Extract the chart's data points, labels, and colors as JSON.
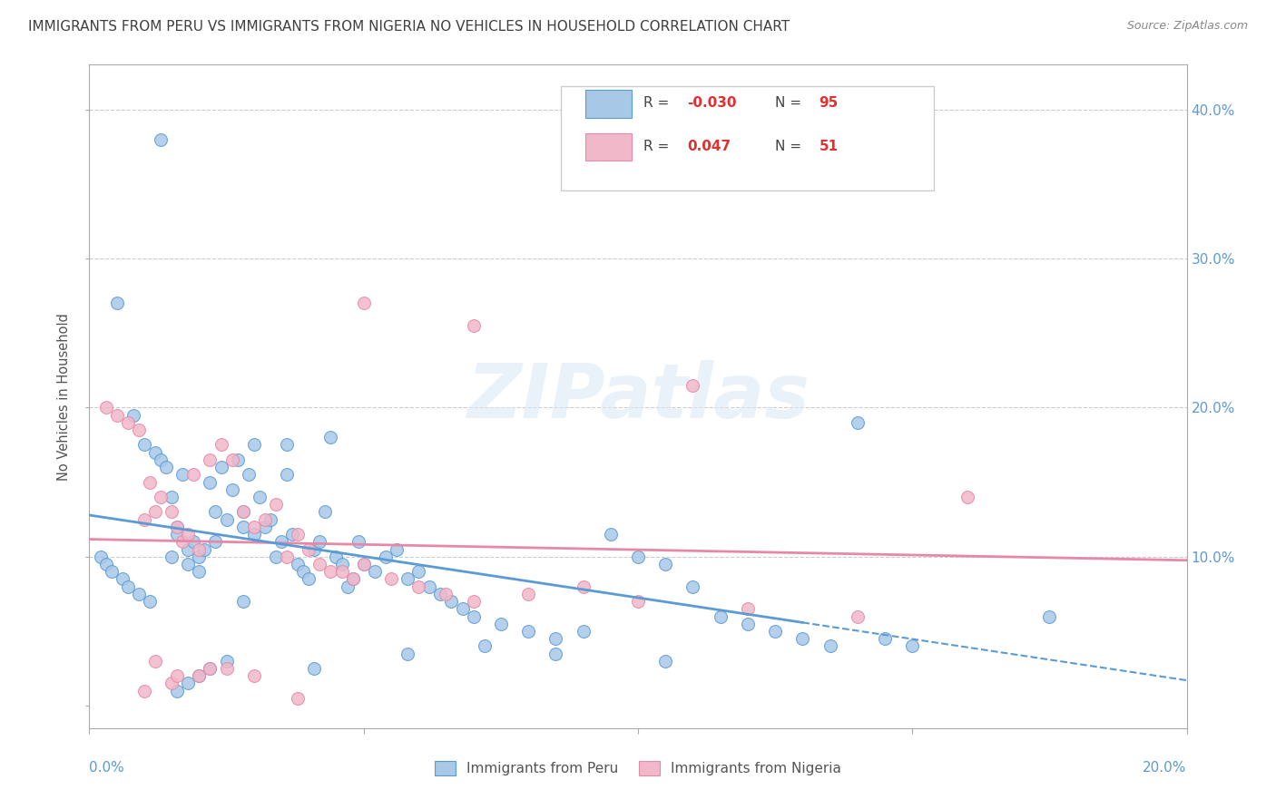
{
  "title": "IMMIGRANTS FROM PERU VS IMMIGRANTS FROM NIGERIA NO VEHICLES IN HOUSEHOLD CORRELATION CHART",
  "source": "Source: ZipAtlas.com",
  "ylabel": "No Vehicles in Household",
  "yticks": [
    0.0,
    0.1,
    0.2,
    0.3,
    0.4
  ],
  "ytick_labels": [
    "",
    "10.0%",
    "20.0%",
    "30.0%",
    "40.0%"
  ],
  "xlim": [
    0.0,
    0.2
  ],
  "ylim": [
    -0.015,
    0.43
  ],
  "legend_r_peru": "-0.030",
  "legend_n_peru": "95",
  "legend_r_nigeria": "0.047",
  "legend_n_nigeria": "51",
  "peru_color": "#a8c8e8",
  "nigeria_color": "#f0b8c8",
  "peru_edge_color": "#5b9bd5",
  "nigeria_edge_color": "#e888a8",
  "peru_line_color": "#5b9bd5",
  "nigeria_line_color": "#e888a8",
  "watermark": "ZIPatlas",
  "background_color": "#ffffff",
  "grid_color": "#cccccc",
  "title_color": "#404040",
  "axis_label_color": "#5b9bd5",
  "peru_scatter_x": [
    0.002,
    0.003,
    0.004,
    0.005,
    0.006,
    0.007,
    0.008,
    0.009,
    0.01,
    0.011,
    0.012,
    0.013,
    0.014,
    0.015,
    0.015,
    0.016,
    0.016,
    0.017,
    0.018,
    0.018,
    0.019,
    0.02,
    0.02,
    0.021,
    0.022,
    0.023,
    0.023,
    0.024,
    0.025,
    0.026,
    0.027,
    0.028,
    0.028,
    0.029,
    0.03,
    0.03,
    0.031,
    0.032,
    0.033,
    0.034,
    0.035,
    0.036,
    0.036,
    0.037,
    0.038,
    0.039,
    0.04,
    0.041,
    0.042,
    0.043,
    0.044,
    0.045,
    0.046,
    0.047,
    0.048,
    0.049,
    0.05,
    0.052,
    0.054,
    0.056,
    0.058,
    0.06,
    0.062,
    0.064,
    0.066,
    0.068,
    0.07,
    0.075,
    0.08,
    0.085,
    0.09,
    0.095,
    0.1,
    0.105,
    0.11,
    0.115,
    0.12,
    0.125,
    0.13,
    0.135,
    0.14,
    0.145,
    0.15,
    0.058,
    0.072,
    0.085,
    0.105,
    0.175,
    0.013,
    0.028,
    0.016,
    0.018,
    0.02,
    0.022,
    0.025,
    0.041
  ],
  "peru_scatter_y": [
    0.1,
    0.095,
    0.09,
    0.27,
    0.085,
    0.08,
    0.195,
    0.075,
    0.175,
    0.07,
    0.17,
    0.165,
    0.16,
    0.14,
    0.1,
    0.12,
    0.115,
    0.155,
    0.105,
    0.095,
    0.11,
    0.09,
    0.1,
    0.105,
    0.15,
    0.13,
    0.11,
    0.16,
    0.125,
    0.145,
    0.165,
    0.13,
    0.12,
    0.155,
    0.175,
    0.115,
    0.14,
    0.12,
    0.125,
    0.1,
    0.11,
    0.175,
    0.155,
    0.115,
    0.095,
    0.09,
    0.085,
    0.105,
    0.11,
    0.13,
    0.18,
    0.1,
    0.095,
    0.08,
    0.085,
    0.11,
    0.095,
    0.09,
    0.1,
    0.105,
    0.085,
    0.09,
    0.08,
    0.075,
    0.07,
    0.065,
    0.06,
    0.055,
    0.05,
    0.045,
    0.05,
    0.115,
    0.1,
    0.095,
    0.08,
    0.06,
    0.055,
    0.05,
    0.045,
    0.04,
    0.19,
    0.045,
    0.04,
    0.035,
    0.04,
    0.035,
    0.03,
    0.06,
    0.38,
    0.07,
    0.01,
    0.015,
    0.02,
    0.025,
    0.03,
    0.025
  ],
  "nigeria_scatter_x": [
    0.003,
    0.005,
    0.007,
    0.009,
    0.01,
    0.011,
    0.012,
    0.013,
    0.015,
    0.016,
    0.017,
    0.018,
    0.019,
    0.02,
    0.022,
    0.024,
    0.026,
    0.028,
    0.03,
    0.032,
    0.034,
    0.036,
    0.038,
    0.04,
    0.042,
    0.044,
    0.046,
    0.048,
    0.05,
    0.055,
    0.06,
    0.065,
    0.07,
    0.08,
    0.09,
    0.1,
    0.12,
    0.14,
    0.16,
    0.11,
    0.05,
    0.07,
    0.01,
    0.015,
    0.02,
    0.025,
    0.012,
    0.016,
    0.022,
    0.03,
    0.038
  ],
  "nigeria_scatter_y": [
    0.2,
    0.195,
    0.19,
    0.185,
    0.125,
    0.15,
    0.13,
    0.14,
    0.13,
    0.12,
    0.11,
    0.115,
    0.155,
    0.105,
    0.165,
    0.175,
    0.165,
    0.13,
    0.12,
    0.125,
    0.135,
    0.1,
    0.115,
    0.105,
    0.095,
    0.09,
    0.09,
    0.085,
    0.095,
    0.085,
    0.08,
    0.075,
    0.07,
    0.075,
    0.08,
    0.07,
    0.065,
    0.06,
    0.14,
    0.215,
    0.27,
    0.255,
    0.01,
    0.015,
    0.02,
    0.025,
    0.03,
    0.02,
    0.025,
    0.02,
    0.005
  ]
}
